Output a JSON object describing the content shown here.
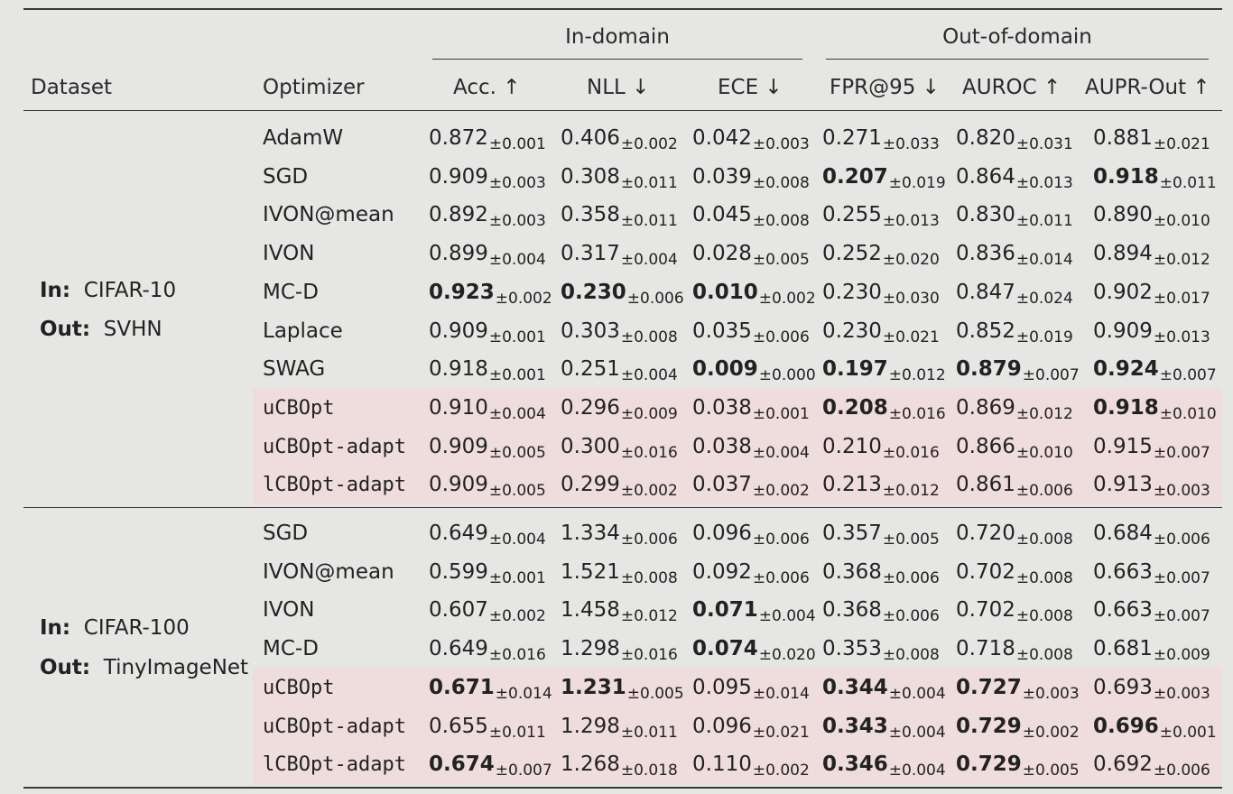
{
  "header": {
    "group_in": "In-domain",
    "group_out": "Out-of-domain",
    "dataset": "Dataset",
    "optimizer": "Optimizer",
    "columns": [
      "Acc. ↑",
      "NLL ↓",
      "ECE ↓",
      "FPR@95 ↓",
      "AUROC ↑",
      "AUPR-Out ↑"
    ]
  },
  "blocks": [
    {
      "in_label": "In:",
      "in_value": "CIFAR-10",
      "out_label": "Out:",
      "out_value": "SVHN",
      "rows": [
        {
          "optimizer": "AdamW",
          "mono": false,
          "highlight": false,
          "cells": [
            {
              "v": "0.872",
              "s": "±0.001",
              "b": false
            },
            {
              "v": "0.406",
              "s": "±0.002",
              "b": false
            },
            {
              "v": "0.042",
              "s": "±0.003",
              "b": false
            },
            {
              "v": "0.271",
              "s": "±0.033",
              "b": false
            },
            {
              "v": "0.820",
              "s": "±0.031",
              "b": false
            },
            {
              "v": "0.881",
              "s": "±0.021",
              "b": false
            }
          ]
        },
        {
          "optimizer": "SGD",
          "mono": false,
          "highlight": false,
          "cells": [
            {
              "v": "0.909",
              "s": "±0.003",
              "b": false
            },
            {
              "v": "0.308",
              "s": "±0.011",
              "b": false
            },
            {
              "v": "0.039",
              "s": "±0.008",
              "b": false
            },
            {
              "v": "0.207",
              "s": "±0.019",
              "b": true
            },
            {
              "v": "0.864",
              "s": "±0.013",
              "b": false
            },
            {
              "v": "0.918",
              "s": "±0.011",
              "b": true
            }
          ]
        },
        {
          "optimizer": "IVON@mean",
          "mono": false,
          "highlight": false,
          "cells": [
            {
              "v": "0.892",
              "s": "±0.003",
              "b": false
            },
            {
              "v": "0.358",
              "s": "±0.011",
              "b": false
            },
            {
              "v": "0.045",
              "s": "±0.008",
              "b": false
            },
            {
              "v": "0.255",
              "s": "±0.013",
              "b": false
            },
            {
              "v": "0.830",
              "s": "±0.011",
              "b": false
            },
            {
              "v": "0.890",
              "s": "±0.010",
              "b": false
            }
          ]
        },
        {
          "optimizer": "IVON",
          "mono": false,
          "highlight": false,
          "cells": [
            {
              "v": "0.899",
              "s": "±0.004",
              "b": false
            },
            {
              "v": "0.317",
              "s": "±0.004",
              "b": false
            },
            {
              "v": "0.028",
              "s": "±0.005",
              "b": false
            },
            {
              "v": "0.252",
              "s": "±0.020",
              "b": false
            },
            {
              "v": "0.836",
              "s": "±0.014",
              "b": false
            },
            {
              "v": "0.894",
              "s": "±0.012",
              "b": false
            }
          ]
        },
        {
          "optimizer": "MC-D",
          "mono": false,
          "highlight": false,
          "cells": [
            {
              "v": "0.923",
              "s": "±0.002",
              "b": true
            },
            {
              "v": "0.230",
              "s": "±0.006",
              "b": true
            },
            {
              "v": "0.010",
              "s": "±0.002",
              "b": true
            },
            {
              "v": "0.230",
              "s": "±0.030",
              "b": false
            },
            {
              "v": "0.847",
              "s": "±0.024",
              "b": false
            },
            {
              "v": "0.902",
              "s": "±0.017",
              "b": false
            }
          ]
        },
        {
          "optimizer": "Laplace",
          "mono": false,
          "highlight": false,
          "cells": [
            {
              "v": "0.909",
              "s": "±0.001",
              "b": false
            },
            {
              "v": "0.303",
              "s": "±0.008",
              "b": false
            },
            {
              "v": "0.035",
              "s": "±0.006",
              "b": false
            },
            {
              "v": "0.230",
              "s": "±0.021",
              "b": false
            },
            {
              "v": "0.852",
              "s": "±0.019",
              "b": false
            },
            {
              "v": "0.909",
              "s": "±0.013",
              "b": false
            }
          ]
        },
        {
          "optimizer": "SWAG",
          "mono": false,
          "highlight": false,
          "cells": [
            {
              "v": "0.918",
              "s": "±0.001",
              "b": false
            },
            {
              "v": "0.251",
              "s": "±0.004",
              "b": false
            },
            {
              "v": "0.009",
              "s": "±0.000",
              "b": true
            },
            {
              "v": "0.197",
              "s": "±0.012",
              "b": true
            },
            {
              "v": "0.879",
              "s": "±0.007",
              "b": true
            },
            {
              "v": "0.924",
              "s": "±0.007",
              "b": true
            }
          ]
        },
        {
          "optimizer": "uCBOpt",
          "mono": true,
          "highlight": true,
          "cells": [
            {
              "v": "0.910",
              "s": "±0.004",
              "b": false
            },
            {
              "v": "0.296",
              "s": "±0.009",
              "b": false
            },
            {
              "v": "0.038",
              "s": "±0.001",
              "b": false
            },
            {
              "v": "0.208",
              "s": "±0.016",
              "b": true
            },
            {
              "v": "0.869",
              "s": "±0.012",
              "b": false
            },
            {
              "v": "0.918",
              "s": "±0.010",
              "b": true
            }
          ]
        },
        {
          "optimizer": "uCBOpt-adapt",
          "mono": true,
          "highlight": true,
          "cells": [
            {
              "v": "0.909",
              "s": "±0.005",
              "b": false
            },
            {
              "v": "0.300",
              "s": "±0.016",
              "b": false
            },
            {
              "v": "0.038",
              "s": "±0.004",
              "b": false
            },
            {
              "v": "0.210",
              "s": "±0.016",
              "b": false
            },
            {
              "v": "0.866",
              "s": "±0.010",
              "b": false
            },
            {
              "v": "0.915",
              "s": "±0.007",
              "b": false
            }
          ]
        },
        {
          "optimizer": "lCBOpt-adapt",
          "mono": true,
          "highlight": true,
          "cells": [
            {
              "v": "0.909",
              "s": "±0.005",
              "b": false
            },
            {
              "v": "0.299",
              "s": "±0.002",
              "b": false
            },
            {
              "v": "0.037",
              "s": "±0.002",
              "b": false
            },
            {
              "v": "0.213",
              "s": "±0.012",
              "b": false
            },
            {
              "v": "0.861",
              "s": "±0.006",
              "b": false
            },
            {
              "v": "0.913",
              "s": "±0.003",
              "b": false
            }
          ]
        }
      ]
    },
    {
      "in_label": "In:",
      "in_value": "CIFAR-100",
      "out_label": "Out:",
      "out_value": "TinyImageNet",
      "rows": [
        {
          "optimizer": "SGD",
          "mono": false,
          "highlight": false,
          "cells": [
            {
              "v": "0.649",
              "s": "±0.004",
              "b": false
            },
            {
              "v": "1.334",
              "s": "±0.006",
              "b": false
            },
            {
              "v": "0.096",
              "s": "±0.006",
              "b": false
            },
            {
              "v": "0.357",
              "s": "±0.005",
              "b": false
            },
            {
              "v": "0.720",
              "s": "±0.008",
              "b": false
            },
            {
              "v": "0.684",
              "s": "±0.006",
              "b": false
            }
          ]
        },
        {
          "optimizer": "IVON@mean",
          "mono": false,
          "highlight": false,
          "cells": [
            {
              "v": "0.599",
              "s": "±0.001",
              "b": false
            },
            {
              "v": "1.521",
              "s": "±0.008",
              "b": false
            },
            {
              "v": "0.092",
              "s": "±0.006",
              "b": false
            },
            {
              "v": "0.368",
              "s": "±0.006",
              "b": false
            },
            {
              "v": "0.702",
              "s": "±0.008",
              "b": false
            },
            {
              "v": "0.663",
              "s": "±0.007",
              "b": false
            }
          ]
        },
        {
          "optimizer": "IVON",
          "mono": false,
          "highlight": false,
          "cells": [
            {
              "v": "0.607",
              "s": "±0.002",
              "b": false
            },
            {
              "v": "1.458",
              "s": "±0.012",
              "b": false
            },
            {
              "v": "0.071",
              "s": "±0.004",
              "b": true
            },
            {
              "v": "0.368",
              "s": "±0.006",
              "b": false
            },
            {
              "v": "0.702",
              "s": "±0.008",
              "b": false
            },
            {
              "v": "0.663",
              "s": "±0.007",
              "b": false
            }
          ]
        },
        {
          "optimizer": "MC-D",
          "mono": false,
          "highlight": false,
          "cells": [
            {
              "v": "0.649",
              "s": "±0.016",
              "b": false
            },
            {
              "v": "1.298",
              "s": "±0.016",
              "b": false
            },
            {
              "v": "0.074",
              "s": "±0.020",
              "b": true
            },
            {
              "v": "0.353",
              "s": "±0.008",
              "b": false
            },
            {
              "v": "0.718",
              "s": "±0.008",
              "b": false
            },
            {
              "v": "0.681",
              "s": "±0.009",
              "b": false
            }
          ]
        },
        {
          "optimizer": "uCBOpt",
          "mono": true,
          "highlight": true,
          "cells": [
            {
              "v": "0.671",
              "s": "±0.014",
              "b": true
            },
            {
              "v": "1.231",
              "s": "±0.005",
              "b": true
            },
            {
              "v": "0.095",
              "s": "±0.014",
              "b": false
            },
            {
              "v": "0.344",
              "s": "±0.004",
              "b": true
            },
            {
              "v": "0.727",
              "s": "±0.003",
              "b": true
            },
            {
              "v": "0.693",
              "s": "±0.003",
              "b": false
            }
          ]
        },
        {
          "optimizer": "uCBOpt-adapt",
          "mono": true,
          "highlight": true,
          "cells": [
            {
              "v": "0.655",
              "s": "±0.011",
              "b": false
            },
            {
              "v": "1.298",
              "s": "±0.011",
              "b": false
            },
            {
              "v": "0.096",
              "s": "±0.021",
              "b": false
            },
            {
              "v": "0.343",
              "s": "±0.004",
              "b": true
            },
            {
              "v": "0.729",
              "s": "±0.002",
              "b": true
            },
            {
              "v": "0.696",
              "s": "±0.001",
              "b": true
            }
          ]
        },
        {
          "optimizer": "lCBOpt-adapt",
          "mono": true,
          "highlight": true,
          "cells": [
            {
              "v": "0.674",
              "s": "±0.007",
              "b": true
            },
            {
              "v": "1.268",
              "s": "±0.018",
              "b": false
            },
            {
              "v": "0.110",
              "s": "±0.002",
              "b": false
            },
            {
              "v": "0.346",
              "s": "±0.004",
              "b": true
            },
            {
              "v": "0.729",
              "s": "±0.005",
              "b": true
            },
            {
              "v": "0.692",
              "s": "±0.006",
              "b": false
            }
          ]
        }
      ]
    }
  ]
}
